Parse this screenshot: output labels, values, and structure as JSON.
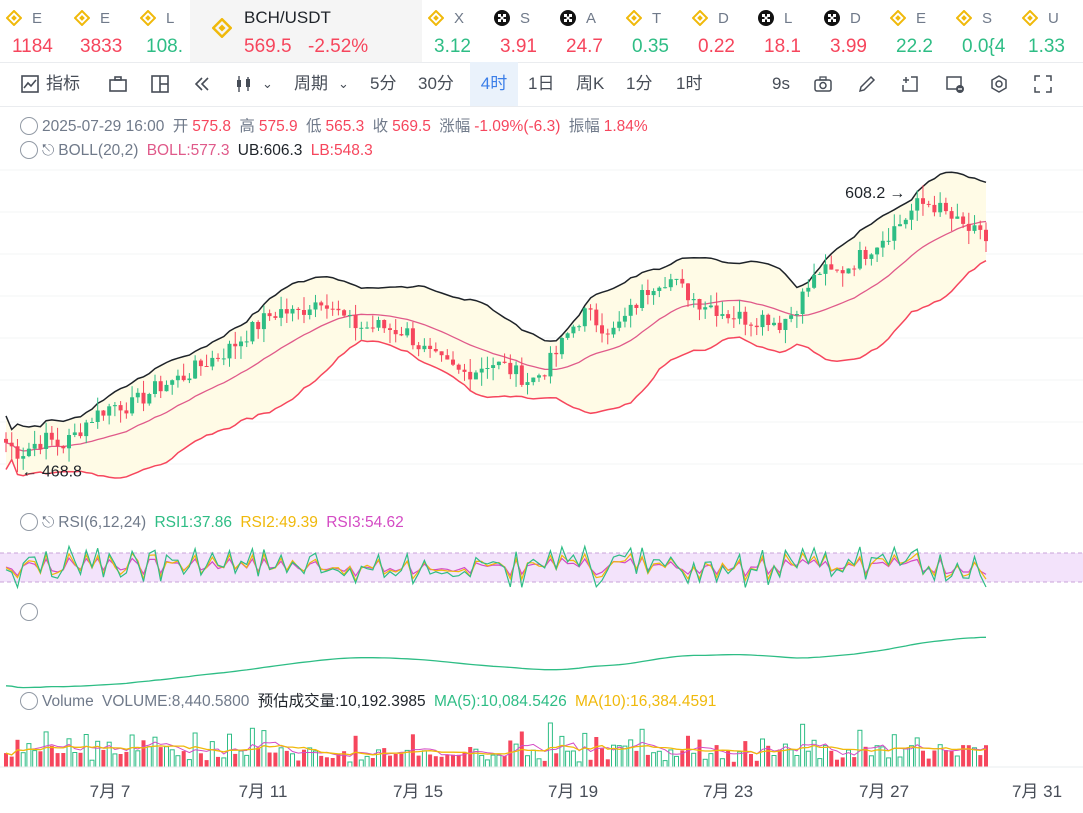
{
  "tickers": [
    {
      "name": "E",
      "price": "1184",
      "dir": "dn",
      "icon": "bnb-icon"
    },
    {
      "name": "E",
      "price": "3833",
      "dir": "dn",
      "icon": "bnb-icon"
    },
    {
      "name": "L",
      "price": "108.",
      "dir": "up",
      "icon": "bnb-icon"
    },
    {
      "name": "BCH/USDT",
      "price": "569.5",
      "change": "-2.52%",
      "dir": "dn",
      "icon": "bnb-icon",
      "active": true
    },
    {
      "name": "X",
      "price": "3.12",
      "dir": "up",
      "icon": "bnb-icon"
    },
    {
      "name": "S",
      "price": "3.91",
      "dir": "dn",
      "icon": "okx-icon"
    },
    {
      "name": "A",
      "price": "24.7",
      "dir": "dn",
      "icon": "okx-icon"
    },
    {
      "name": "T",
      "price": "0.35",
      "dir": "up",
      "icon": "bnb-icon"
    },
    {
      "name": "D",
      "price": "0.22",
      "dir": "dn",
      "icon": "bnb-icon"
    },
    {
      "name": "L",
      "price": "18.1",
      "dir": "dn",
      "icon": "okx-icon"
    },
    {
      "name": "D",
      "price": "3.99",
      "dir": "dn",
      "icon": "okx-icon"
    },
    {
      "name": "E",
      "price": "22.2",
      "dir": "up",
      "icon": "bnb-icon"
    },
    {
      "name": "S",
      "price": "0.0{4",
      "dir": "up",
      "icon": "bnb-icon"
    },
    {
      "name": "U",
      "price": "1.33",
      "dir": "up",
      "icon": "bnb-icon"
    }
  ],
  "toolbar": {
    "indicators": "指标",
    "period": "周期",
    "intervals": [
      "5分",
      "30分",
      "4时",
      "1日",
      "周K",
      "1分",
      "1时"
    ],
    "selected_interval": "4时",
    "refresh": "9s"
  },
  "ohlc": {
    "datetime": "2025-07-29 16:00",
    "open_label": "开",
    "open": "575.8",
    "high_label": "高",
    "high": "575.9",
    "low_label": "低",
    "low": "565.3",
    "close_label": "收",
    "close": "569.5",
    "change_label": "涨幅",
    "change": "-1.09%(-6.3)",
    "amp_label": "振幅",
    "amp": "1.84%"
  },
  "boll": {
    "label": "BOLL(20,2)",
    "boll": "BOLL:577.3",
    "ub": "UB:606.3",
    "lb": "LB:548.3"
  },
  "rsi": {
    "label": "RSI(6,12,24)",
    "rsi1": "RSI1:37.86",
    "rsi2": "RSI2:49.39",
    "rsi3": "RSI3:54.62"
  },
  "volume": {
    "label": "Volume",
    "vol": "VOLUME:8,440.5800",
    "est": "预估成交量:10,192.3985",
    "ma5": "MA(5):10,084.5426",
    "ma10": "MA(10):16,384.4591"
  },
  "chart_data": {
    "type": "candlestick",
    "symbol": "BCH/USDT",
    "interval": "4时",
    "x_ticks": [
      "7月 7",
      "7月 11",
      "7月 15",
      "7月 19",
      "7月 23",
      "7月 27",
      "7月 31"
    ],
    "max_marker": "608.2",
    "min_marker": "468.8",
    "close_path": [
      480,
      474,
      479,
      482,
      478,
      484,
      492,
      497,
      500,
      499,
      504,
      509,
      512,
      515,
      520,
      524,
      528,
      534,
      540,
      546,
      549,
      547,
      552,
      556,
      548,
      542,
      540,
      541,
      539,
      538,
      530,
      524,
      520,
      516,
      518,
      522,
      520,
      516,
      512,
      518,
      528,
      540,
      548,
      542,
      538,
      546,
      556,
      564,
      566,
      560,
      554,
      552,
      548,
      546,
      544,
      546,
      542,
      548,
      560,
      570,
      568,
      572,
      578,
      584,
      590,
      596,
      604,
      605,
      600,
      594,
      590,
      586
    ],
    "colors": {
      "up": "#2ebd85",
      "down": "#f6465d",
      "boll_mid": "#e05a8a",
      "boll_upper": "#1e2329",
      "boll_lower": "#f6465d",
      "band_fill": "#fffbe6",
      "rsi1": "#2ebd85",
      "rsi2": "#f0b90b",
      "rsi3": "#d44bc4",
      "rsi_band": "#f3e3fb"
    }
  }
}
